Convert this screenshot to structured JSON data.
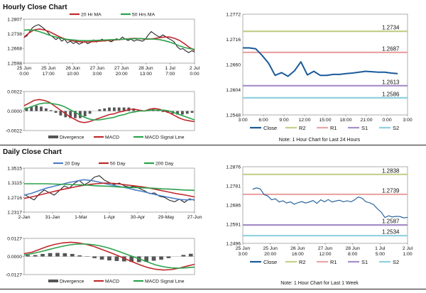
{
  "sections": {
    "hourly_title": "Hourly Close Chart",
    "daily_title": "Daily Close Chart",
    "note_hourly": "Note: 1 Hour Chart for Last 24 Hours",
    "note_daily": "Note: 1 Hour Chart for Last 1 Week"
  },
  "colors": {
    "price": "#111111",
    "ma_short": "#c0282d",
    "ma_long": "#2ba24c",
    "ma_20d": "#4c7ec4",
    "close": "#1a5a9a",
    "r2": "#c3d08a",
    "r1": "#eaa5a5",
    "s1": "#a58ec8",
    "s2": "#8fd0e0",
    "divergence": "#555555",
    "macd": "#c0282d",
    "signal": "#2ba24c"
  },
  "chart_data": [
    {
      "id": "hourly_price",
      "type": "line",
      "legend": [
        "20 Hr MA",
        "50 Hrs MA"
      ],
      "y_ticks": [
        "1.2807",
        "1.2738",
        "1.2668",
        "1.2598"
      ],
      "ylim": [
        1.2598,
        1.2807
      ],
      "x_ticks": [
        "25 Jun\n0:00",
        "25 Jun\n17:00",
        "26 Jun\n10:00",
        "27 Jun\n3:00",
        "27 Jun\n20:00",
        "28 Jun\n13:00",
        "1 Jul\n7:00",
        "2 Jul\n0:00"
      ],
      "series": [
        {
          "name": "Close",
          "values": [
            1.272,
            1.2728,
            1.275,
            1.2768,
            1.2776,
            1.2781,
            1.2772,
            1.276,
            1.2748,
            1.2731,
            1.2722,
            1.271,
            1.2719,
            1.2702,
            1.2712,
            1.2694,
            1.2702,
            1.2691,
            1.2698,
            1.2688,
            1.2694,
            1.2701,
            1.269,
            1.2697,
            1.2709,
            1.2698,
            1.2705,
            1.2712,
            1.2702,
            1.2708,
            1.2699,
            1.2706,
            1.2714,
            1.2708,
            1.2722,
            1.2712,
            1.2706,
            1.2712,
            1.2702,
            1.2709,
            1.2706,
            1.2702,
            1.2712,
            1.2732,
            1.2748,
            1.2738,
            1.2728,
            1.2722,
            1.2732,
            1.2724,
            1.2715,
            1.2708,
            1.2698,
            1.2676,
            1.2664,
            1.2667,
            1.2656,
            1.2648,
            1.2657,
            1.2651
          ]
        },
        {
          "name": "20 Hr MA",
          "values": [
            1.2722,
            1.2742,
            1.2756,
            1.276,
            1.2756,
            1.2748,
            1.2736,
            1.2724,
            1.2714,
            1.2707,
            1.2702,
            1.27,
            1.2698,
            1.2699,
            1.27,
            1.2702,
            1.2704,
            1.2706,
            1.2708,
            1.271,
            1.2712,
            1.2714,
            1.2716,
            1.2715,
            1.2712,
            1.2712,
            1.2715,
            1.2719,
            1.2722,
            1.2722,
            1.2716,
            1.2706,
            1.269,
            1.2672,
            1.2658
          ]
        },
        {
          "name": "50 Hrs MA",
          "values": [
            1.2755,
            1.2756,
            1.2754,
            1.2748,
            1.274,
            1.2731,
            1.2724,
            1.2718,
            1.2713,
            1.271,
            1.2708,
            1.2706,
            1.2705,
            1.2705,
            1.2706,
            1.2707,
            1.2708,
            1.2709,
            1.271,
            1.2711,
            1.2712,
            1.2713,
            1.2714,
            1.2715,
            1.2714,
            1.2713,
            1.2712,
            1.271,
            1.2705,
            1.2698,
            1.269,
            1.268,
            1.2672,
            1.2667,
            1.2664
          ]
        }
      ]
    },
    {
      "id": "hourly_macd",
      "type": "bar+line",
      "legend": [
        "Divergence",
        "MACD",
        "MACD Signal Line"
      ],
      "y_ticks": [
        "0.0022",
        "0.0000",
        "-0.0022"
      ],
      "ylim": [
        -0.0022,
        0.0022
      ],
      "series": [
        {
          "name": "MACD",
          "values": [
            0.0006,
            0.0009,
            0.0012,
            0.0013,
            0.0012,
            0.001,
            0.0006,
            0.0002,
            -0.0002,
            -0.0006,
            -0.0009,
            -0.0012,
            -0.0013,
            -0.0012,
            -0.001,
            -0.0008,
            -0.0006,
            -0.0004,
            -0.0003,
            -0.0001,
            0.0,
            0.0002,
            0.0002,
            0.0001,
            0.0,
            0.0002,
            0.0003,
            0.0002,
            0.0,
            -0.0002,
            -0.0005,
            -0.0008,
            -0.001,
            -0.0011,
            -0.0012
          ]
        },
        {
          "name": "MACD Signal Line",
          "values": [
            0.0002,
            0.0004,
            0.0006,
            0.0008,
            0.0009,
            0.0009,
            0.0008,
            0.0007,
            0.0005,
            0.0002,
            -0.0001,
            -0.0004,
            -0.0007,
            -0.0009,
            -0.001,
            -0.001,
            -0.0009,
            -0.0008,
            -0.0007,
            -0.0005,
            -0.0004,
            -0.0002,
            -0.0001,
            0.0,
            0.0,
            0.0001,
            0.0001,
            0.0001,
            0.0001,
            0.0,
            -0.0002,
            -0.0004,
            -0.0006,
            -0.0008,
            -0.001
          ]
        },
        {
          "name": "Divergence",
          "values": [
            0.0004,
            0.0005,
            0.0006,
            0.0005,
            0.0003,
            0.0001,
            -0.0002,
            -0.0005,
            -0.0007,
            -0.0008,
            -0.0008,
            -0.0008,
            -0.0006,
            -0.0003,
            0.0,
            0.0002,
            0.0003,
            0.0004,
            0.0004,
            0.0004,
            0.0004,
            0.0004,
            0.0003,
            0.0001,
            0.0,
            0.0001,
            0.0002,
            0.0001,
            -0.0001,
            -0.0002,
            -0.0003,
            -0.0004,
            -0.0004,
            -0.0003,
            -0.0002
          ]
        }
      ]
    },
    {
      "id": "hourly_levels",
      "type": "line",
      "legend": [
        "Close",
        "R2",
        "R1",
        "S1",
        "S2"
      ],
      "y_ticks": [
        "1.2772",
        "1.2716",
        "1.2660",
        "1.2604",
        "1.2548"
      ],
      "ylim": [
        1.2548,
        1.2772
      ],
      "x_ticks": [
        "3:00",
        "6:00",
        "9:00",
        "12:00",
        "15:00",
        "18:00",
        "21:00",
        "0:00",
        "3:00"
      ],
      "levels": [
        {
          "name": "R2",
          "value": 1.2734,
          "label": "1.2734"
        },
        {
          "name": "R1",
          "value": 1.2687,
          "label": "1.2687"
        },
        {
          "name": "S1",
          "value": 1.2613,
          "label": "1.2613"
        },
        {
          "name": "S2",
          "value": 1.2586,
          "label": "1.2586"
        }
      ],
      "series": [
        {
          "name": "Close",
          "values": [
            1.2697,
            1.2697,
            1.2695,
            1.268,
            1.2663,
            1.2636,
            1.2642,
            1.2634,
            1.2646,
            1.2666,
            1.2637,
            1.2645,
            1.2636,
            1.2636,
            1.2638,
            1.2638,
            1.264,
            1.2641,
            1.2643,
            1.2645,
            1.2644,
            1.2643,
            1.2643,
            1.2641,
            1.264
          ]
        }
      ]
    },
    {
      "id": "daily_price",
      "type": "line",
      "legend": [
        "20 Day",
        "50 Day",
        "200 Day"
      ],
      "y_ticks": [
        "1.3515",
        "1.3115",
        "1.2716",
        "1.2317"
      ],
      "ylim": [
        1.2317,
        1.3515
      ],
      "x_ticks": [
        "2-Jan",
        "31-Jan",
        "1-Mar",
        "1-Apr",
        "30-Apr",
        "29-May",
        "27-Jun"
      ],
      "series": [
        {
          "name": "Close",
          "values": [
            1.28,
            1.272,
            1.265,
            1.281,
            1.292,
            1.285,
            1.278,
            1.29,
            1.303,
            1.297,
            1.31,
            1.318,
            1.306,
            1.314,
            1.327,
            1.331,
            1.319,
            1.312,
            1.307,
            1.311,
            1.303,
            1.3,
            1.302,
            1.296,
            1.29,
            1.282,
            1.284,
            1.275,
            1.272,
            1.264,
            1.26,
            1.267,
            1.258,
            1.268,
            1.264
          ]
        },
        {
          "name": "20 Day",
          "values": [
            1.278,
            1.283,
            1.29,
            1.297,
            1.302,
            1.307,
            1.312,
            1.316,
            1.32,
            1.318,
            1.314,
            1.309,
            1.305,
            1.301,
            1.297,
            1.292,
            1.288,
            1.283,
            1.278,
            1.274,
            1.27,
            1.266,
            1.265,
            1.266
          ]
        },
        {
          "name": "50 Day",
          "values": [
            1.269,
            1.274,
            1.28,
            1.286,
            1.292,
            1.297,
            1.302,
            1.306,
            1.309,
            1.311,
            1.31,
            1.307,
            1.304,
            1.301,
            1.297,
            1.292,
            1.287,
            1.282,
            1.278,
            1.273
          ]
        },
        {
          "name": "200 Day",
          "values": [
            1.309,
            1.309,
            1.309,
            1.308,
            1.307,
            1.306,
            1.305,
            1.303,
            1.302,
            1.3,
            1.299,
            1.298,
            1.297,
            1.295,
            1.294,
            1.292,
            1.291
          ]
        }
      ]
    },
    {
      "id": "daily_macd",
      "type": "bar+line",
      "legend": [
        "Divergence",
        "MACD",
        "MACD Signal Line"
      ],
      "y_ticks": [
        "0.0127",
        "0.0000",
        "-0.0127"
      ],
      "ylim": [
        -0.0127,
        0.0127
      ],
      "series": [
        {
          "name": "MACD",
          "values": [
            0.002,
            0.003,
            0.005,
            0.007,
            0.0085,
            0.0095,
            0.01,
            0.0095,
            0.0085,
            0.007,
            0.005,
            0.003,
            0.0008,
            -0.0015,
            -0.0038,
            -0.006,
            -0.0078,
            -0.009,
            -0.0095,
            -0.0092,
            -0.0082,
            -0.0068,
            -0.0055
          ]
        },
        {
          "name": "MACD Signal Line",
          "values": [
            0.001,
            0.002,
            0.0032,
            0.0046,
            0.006,
            0.0072,
            0.0082,
            0.0087,
            0.0087,
            0.0082,
            0.0072,
            0.0058,
            0.004,
            0.002,
            0.0,
            -0.002,
            -0.004,
            -0.006,
            -0.0072,
            -0.008,
            -0.0082,
            -0.0079,
            -0.0074
          ]
        },
        {
          "name": "Divergence",
          "values": [
            0.001,
            0.001,
            0.0018,
            0.0024,
            0.0025,
            0.0023,
            0.0018,
            0.0008,
            -0.0002,
            -0.0012,
            -0.0022,
            -0.0028,
            -0.0032,
            -0.0035,
            -0.0038,
            -0.004,
            -0.0038,
            -0.003,
            -0.0023,
            -0.0012,
            0.0,
            0.0011,
            0.0019
          ]
        }
      ]
    },
    {
      "id": "daily_levels",
      "type": "line",
      "legend": [
        "Close",
        "R2",
        "R1",
        "S1",
        "S2"
      ],
      "y_ticks": [
        "1.2876",
        "1.2781",
        "1.2686",
        "1.2591",
        "1.2496"
      ],
      "ylim": [
        1.2496,
        1.2876
      ],
      "x_ticks": [
        "25 Jun\n3:00",
        "25 Jun\n20:00",
        "26 Jun\n16:00",
        "27 Jun\n12:00",
        "28 Jun\n8:00",
        "1 Jul\n5:00",
        "2 Jul\n1:00"
      ],
      "levels": [
        {
          "name": "R2",
          "value": 1.2838,
          "label": "1.2838"
        },
        {
          "name": "R1",
          "value": 1.2739,
          "label": "1.2739"
        },
        {
          "name": "S1",
          "value": 1.2587,
          "label": "1.2587"
        },
        {
          "name": "S2",
          "value": 1.2534,
          "label": "1.2534"
        }
      ],
      "series": [
        {
          "name": "Close",
          "values": [
            1.2764,
            1.2771,
            1.2766,
            1.2738,
            1.2731,
            1.2712,
            1.2717,
            1.2701,
            1.2707,
            1.2696,
            1.2702,
            1.269,
            1.2698,
            1.2703,
            1.2696,
            1.2701,
            1.2708,
            1.2694,
            1.2712,
            1.2702,
            1.2713,
            1.2701,
            1.2706,
            1.271,
            1.2702,
            1.2707,
            1.2702,
            1.2712,
            1.2726,
            1.2719,
            1.2702,
            1.2697,
            1.2688,
            1.2668,
            1.2651,
            1.2624,
            1.2633,
            1.2627,
            1.263,
            1.2629,
            1.2622,
            1.2625
          ]
        }
      ]
    }
  ]
}
